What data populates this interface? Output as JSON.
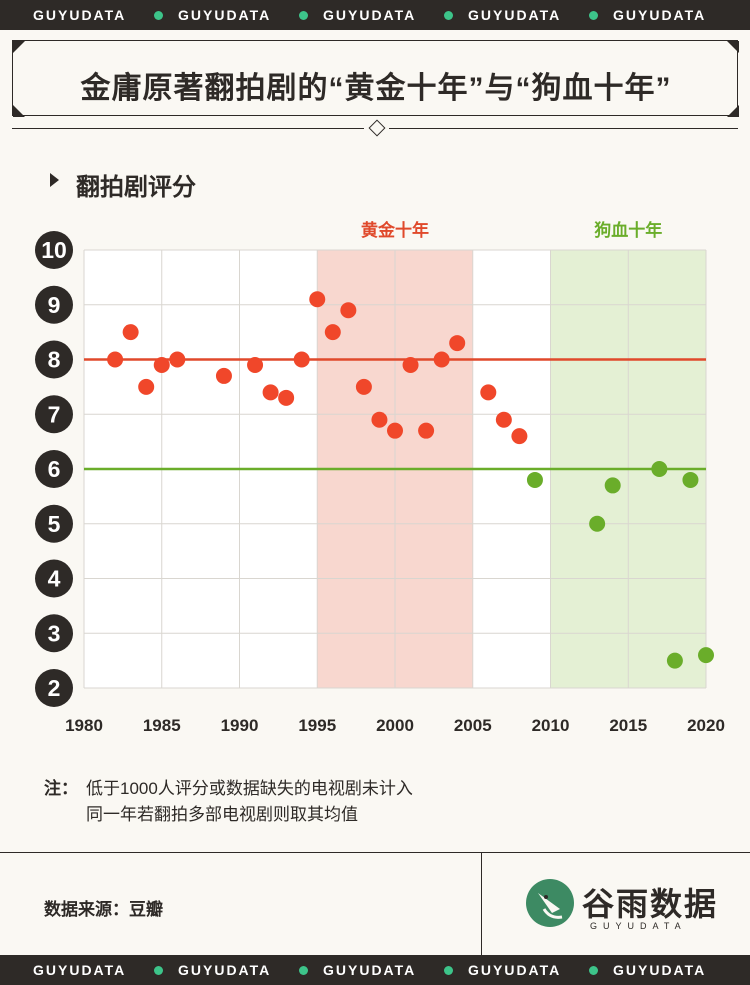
{
  "banner": {
    "text": "GUYUDATA",
    "repeat": 5
  },
  "header": {
    "title": "金庸原著翻拍剧的“黄金十年”与“狗血十年”"
  },
  "section": {
    "subtitle": "翻拍剧评分"
  },
  "chart_data": {
    "type": "scatter",
    "title": "翻拍剧评分",
    "xlabel": "",
    "ylabel": "",
    "xlim": [
      1980,
      2020
    ],
    "ylim": [
      2,
      10
    ],
    "x_ticks": [
      "1980",
      "1985",
      "1990",
      "1995",
      "2000",
      "2005",
      "2010",
      "2015",
      "2020"
    ],
    "y_ticks": [
      "10",
      "9",
      "8",
      "7",
      "6",
      "5",
      "4",
      "3",
      "2"
    ],
    "grid": true,
    "reference_lines": [
      {
        "y": 8,
        "color": "#e0492b"
      },
      {
        "y": 6,
        "color": "#6aad2a"
      }
    ],
    "shaded_ranges": [
      {
        "label": "黄金十年",
        "from": 1995,
        "to": 2005,
        "fill": "#f8d7cf",
        "label_color": "#e0492b"
      },
      {
        "label": "狗血十年",
        "from": 2010,
        "to": 2020,
        "fill": "#e4f0d4",
        "label_color": "#6aad2a"
      }
    ],
    "series": [
      {
        "color": "#f0472a",
        "points": [
          [
            1982,
            8.0
          ],
          [
            1983,
            8.5
          ],
          [
            1984,
            7.5
          ],
          [
            1985,
            7.9
          ],
          [
            1986,
            8.0
          ],
          [
            1989,
            7.7
          ],
          [
            1991,
            7.9
          ],
          [
            1992,
            7.4
          ],
          [
            1993,
            7.3
          ],
          [
            1994,
            8.0
          ],
          [
            1995,
            9.1
          ],
          [
            1996,
            8.5
          ],
          [
            1997,
            8.9
          ],
          [
            1998,
            7.5
          ],
          [
            1999,
            6.9
          ],
          [
            2000,
            6.7
          ],
          [
            2001,
            7.9
          ],
          [
            2002,
            6.7
          ],
          [
            2003,
            8.0
          ],
          [
            2004,
            8.3
          ],
          [
            2006,
            7.4
          ],
          [
            2007,
            6.9
          ],
          [
            2008,
            6.6
          ]
        ]
      },
      {
        "color": "#6aad2a",
        "points": [
          [
            2009,
            5.8
          ],
          [
            2013,
            5.0
          ],
          [
            2014,
            5.7
          ],
          [
            2017,
            6.0
          ],
          [
            2018,
            2.5
          ],
          [
            2019,
            5.8
          ],
          [
            2020,
            2.6
          ]
        ]
      }
    ],
    "colors": {
      "red": "#f0472a",
      "green": "#6aad2a",
      "dark": "#2e2a27"
    }
  },
  "notes": {
    "label": "注：",
    "line1": "低于1000人评分或数据缺失的电视剧未计入",
    "line2": "同一年若翻拍多部电视剧则取其均值"
  },
  "footer": {
    "source": "数据来源：豆瓣",
    "logo_text": "谷雨数据",
    "logo_sub": "GUYUDATA",
    "logo_icon": "bird-icon"
  }
}
